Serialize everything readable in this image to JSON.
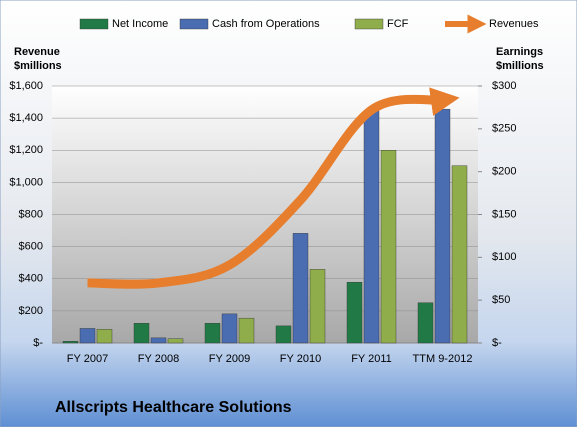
{
  "chart_data": {
    "type": "bar-line",
    "title": "Allscripts Healthcare Solutions",
    "ylabel": [
      "Revenue",
      "$millions"
    ],
    "y2label": [
      "Earnings",
      "$millions"
    ],
    "categories": [
      "FY 2007",
      "FY 2008",
      "FY 2009",
      "FY 2010",
      "FY 2011",
      "TTM 9-2012"
    ],
    "series": [
      {
        "name": "Net Income",
        "color": "#217a45",
        "type": "bar",
        "axis": "y2",
        "values": [
          2,
          23,
          23,
          20,
          71,
          47
        ]
      },
      {
        "name": "Cash from Operations",
        "color": "#4a6cb0",
        "type": "bar",
        "axis": "y2",
        "values": [
          17,
          6,
          34,
          128,
          271,
          273
        ]
      },
      {
        "name": "FCF",
        "color": "#90ad4c",
        "type": "bar",
        "axis": "y2",
        "values": [
          16,
          5,
          29,
          86,
          225,
          207
        ]
      },
      {
        "name": "Revenues",
        "color": "#e67e2e",
        "type": "line",
        "values": [
          374,
          374,
          486,
          890,
          1451,
          1513
        ]
      }
    ],
    "ylim": [
      0,
      1600
    ],
    "yticks": [
      {
        "value": 0,
        "label": "$-"
      },
      {
        "value": 200,
        "label": "$200"
      },
      {
        "value": 400,
        "label": "$400"
      },
      {
        "value": 600,
        "label": "$600"
      },
      {
        "value": 800,
        "label": "$800"
      },
      {
        "value": 1000,
        "label": "$1,000"
      },
      {
        "value": 1200,
        "label": "$1,200"
      },
      {
        "value": 1400,
        "label": "$1,400"
      },
      {
        "value": 1600,
        "label": "$1,600"
      }
    ],
    "y2lim": [
      0,
      300
    ],
    "y2ticks": [
      {
        "value": 0,
        "label": "$-"
      },
      {
        "value": 50,
        "label": "$50"
      },
      {
        "value": 100,
        "label": "$100"
      },
      {
        "value": 150,
        "label": "$150"
      },
      {
        "value": 200,
        "label": "$200"
      },
      {
        "value": 250,
        "label": "$250"
      },
      {
        "value": 300,
        "label": "$300"
      }
    ],
    "grid": true
  }
}
